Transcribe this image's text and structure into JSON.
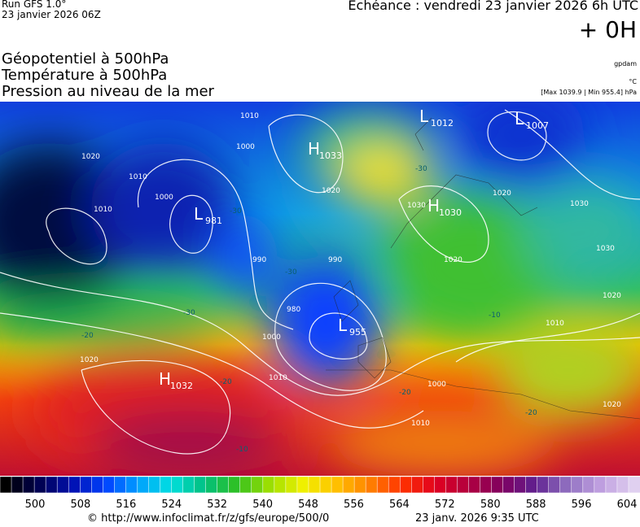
{
  "header": {
    "run": "Run GFS 1.0°",
    "run_date": "23 janvier 2026 06Z",
    "forecast": "Echéance : vendredi 23 janvier 2026 6h UTC",
    "lead": "+ 0H",
    "fields": [
      "Géopotentiel à 500hPa",
      "Température à 500hPa",
      "Pression au niveau de la mer"
    ],
    "units": [
      "gpdam",
      "°C",
      "[Max 1039.9 | Min 955.4] hPa"
    ]
  },
  "map": {
    "centers": [
      {
        "letter": "L",
        "value": "981"
      },
      {
        "letter": "H",
        "value": "1032"
      },
      {
        "letter": "L",
        "value": "955"
      },
      {
        "letter": "L",
        "value": "1007"
      },
      {
        "letter": "H",
        "value": "1030"
      },
      {
        "letter": "L",
        "value": "1012"
      },
      {
        "letter": "H",
        "value": "1033"
      }
    ],
    "isobar_labels": [
      "1020",
      "1010",
      "1010",
      "1000",
      "1010",
      "1000",
      "990",
      "990",
      "980",
      "1000",
      "1010",
      "1020",
      "1020",
      "1030",
      "1030",
      "1020",
      "1010",
      "1020",
      "1030",
      "1020",
      "1000",
      "1010",
      "1020"
    ],
    "temperature_labels": [
      "-30",
      "-20",
      "-30",
      "-20",
      "-20",
      "-20",
      "-10",
      "-30",
      "-30",
      "-10"
    ]
  },
  "colorbar": {
    "labels": [
      500,
      508,
      516,
      524,
      532,
      540,
      548,
      556,
      564,
      572,
      580,
      588,
      596,
      604
    ]
  },
  "footer": {
    "source": "© http://www.infoclimat.fr/z/gfs/europe/500/0",
    "generated": "23 janv. 2026  9:35 UTC"
  }
}
